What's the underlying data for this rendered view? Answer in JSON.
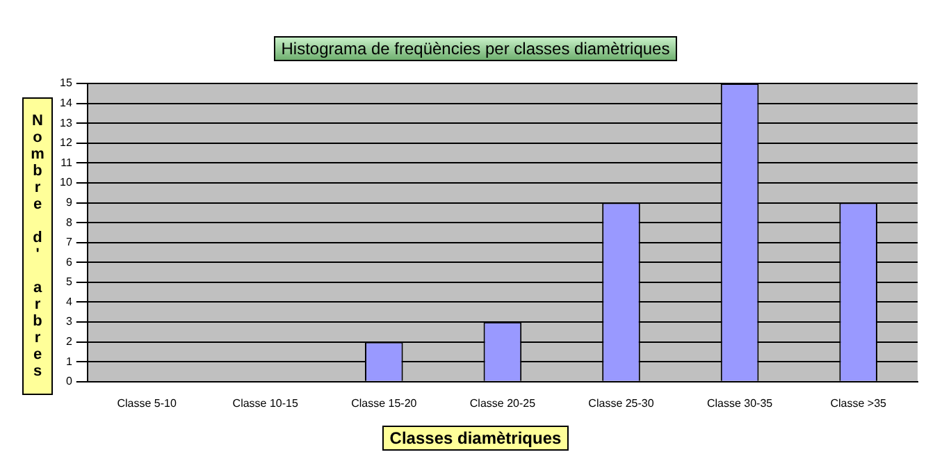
{
  "chart_data": {
    "type": "bar",
    "title": "Histograma de freqüències per classes diamètriques",
    "xlabel": "Classes diamètriques",
    "ylabel": "Nombre d' arbres",
    "categories": [
      "Classe 5-10",
      "Classe 10-15",
      "Classe 15-20",
      "Classe 20-25",
      "Classe 25-30",
      "Classe 30-35",
      "Classe >35"
    ],
    "values": [
      0,
      0,
      2,
      3,
      9,
      15,
      9
    ],
    "color": "#9999ff",
    "ylim": [
      0,
      15
    ],
    "yticks": [
      0,
      1,
      2,
      3,
      4,
      5,
      6,
      7,
      8,
      9,
      10,
      11,
      12,
      13,
      14,
      15
    ],
    "grid": "y"
  }
}
